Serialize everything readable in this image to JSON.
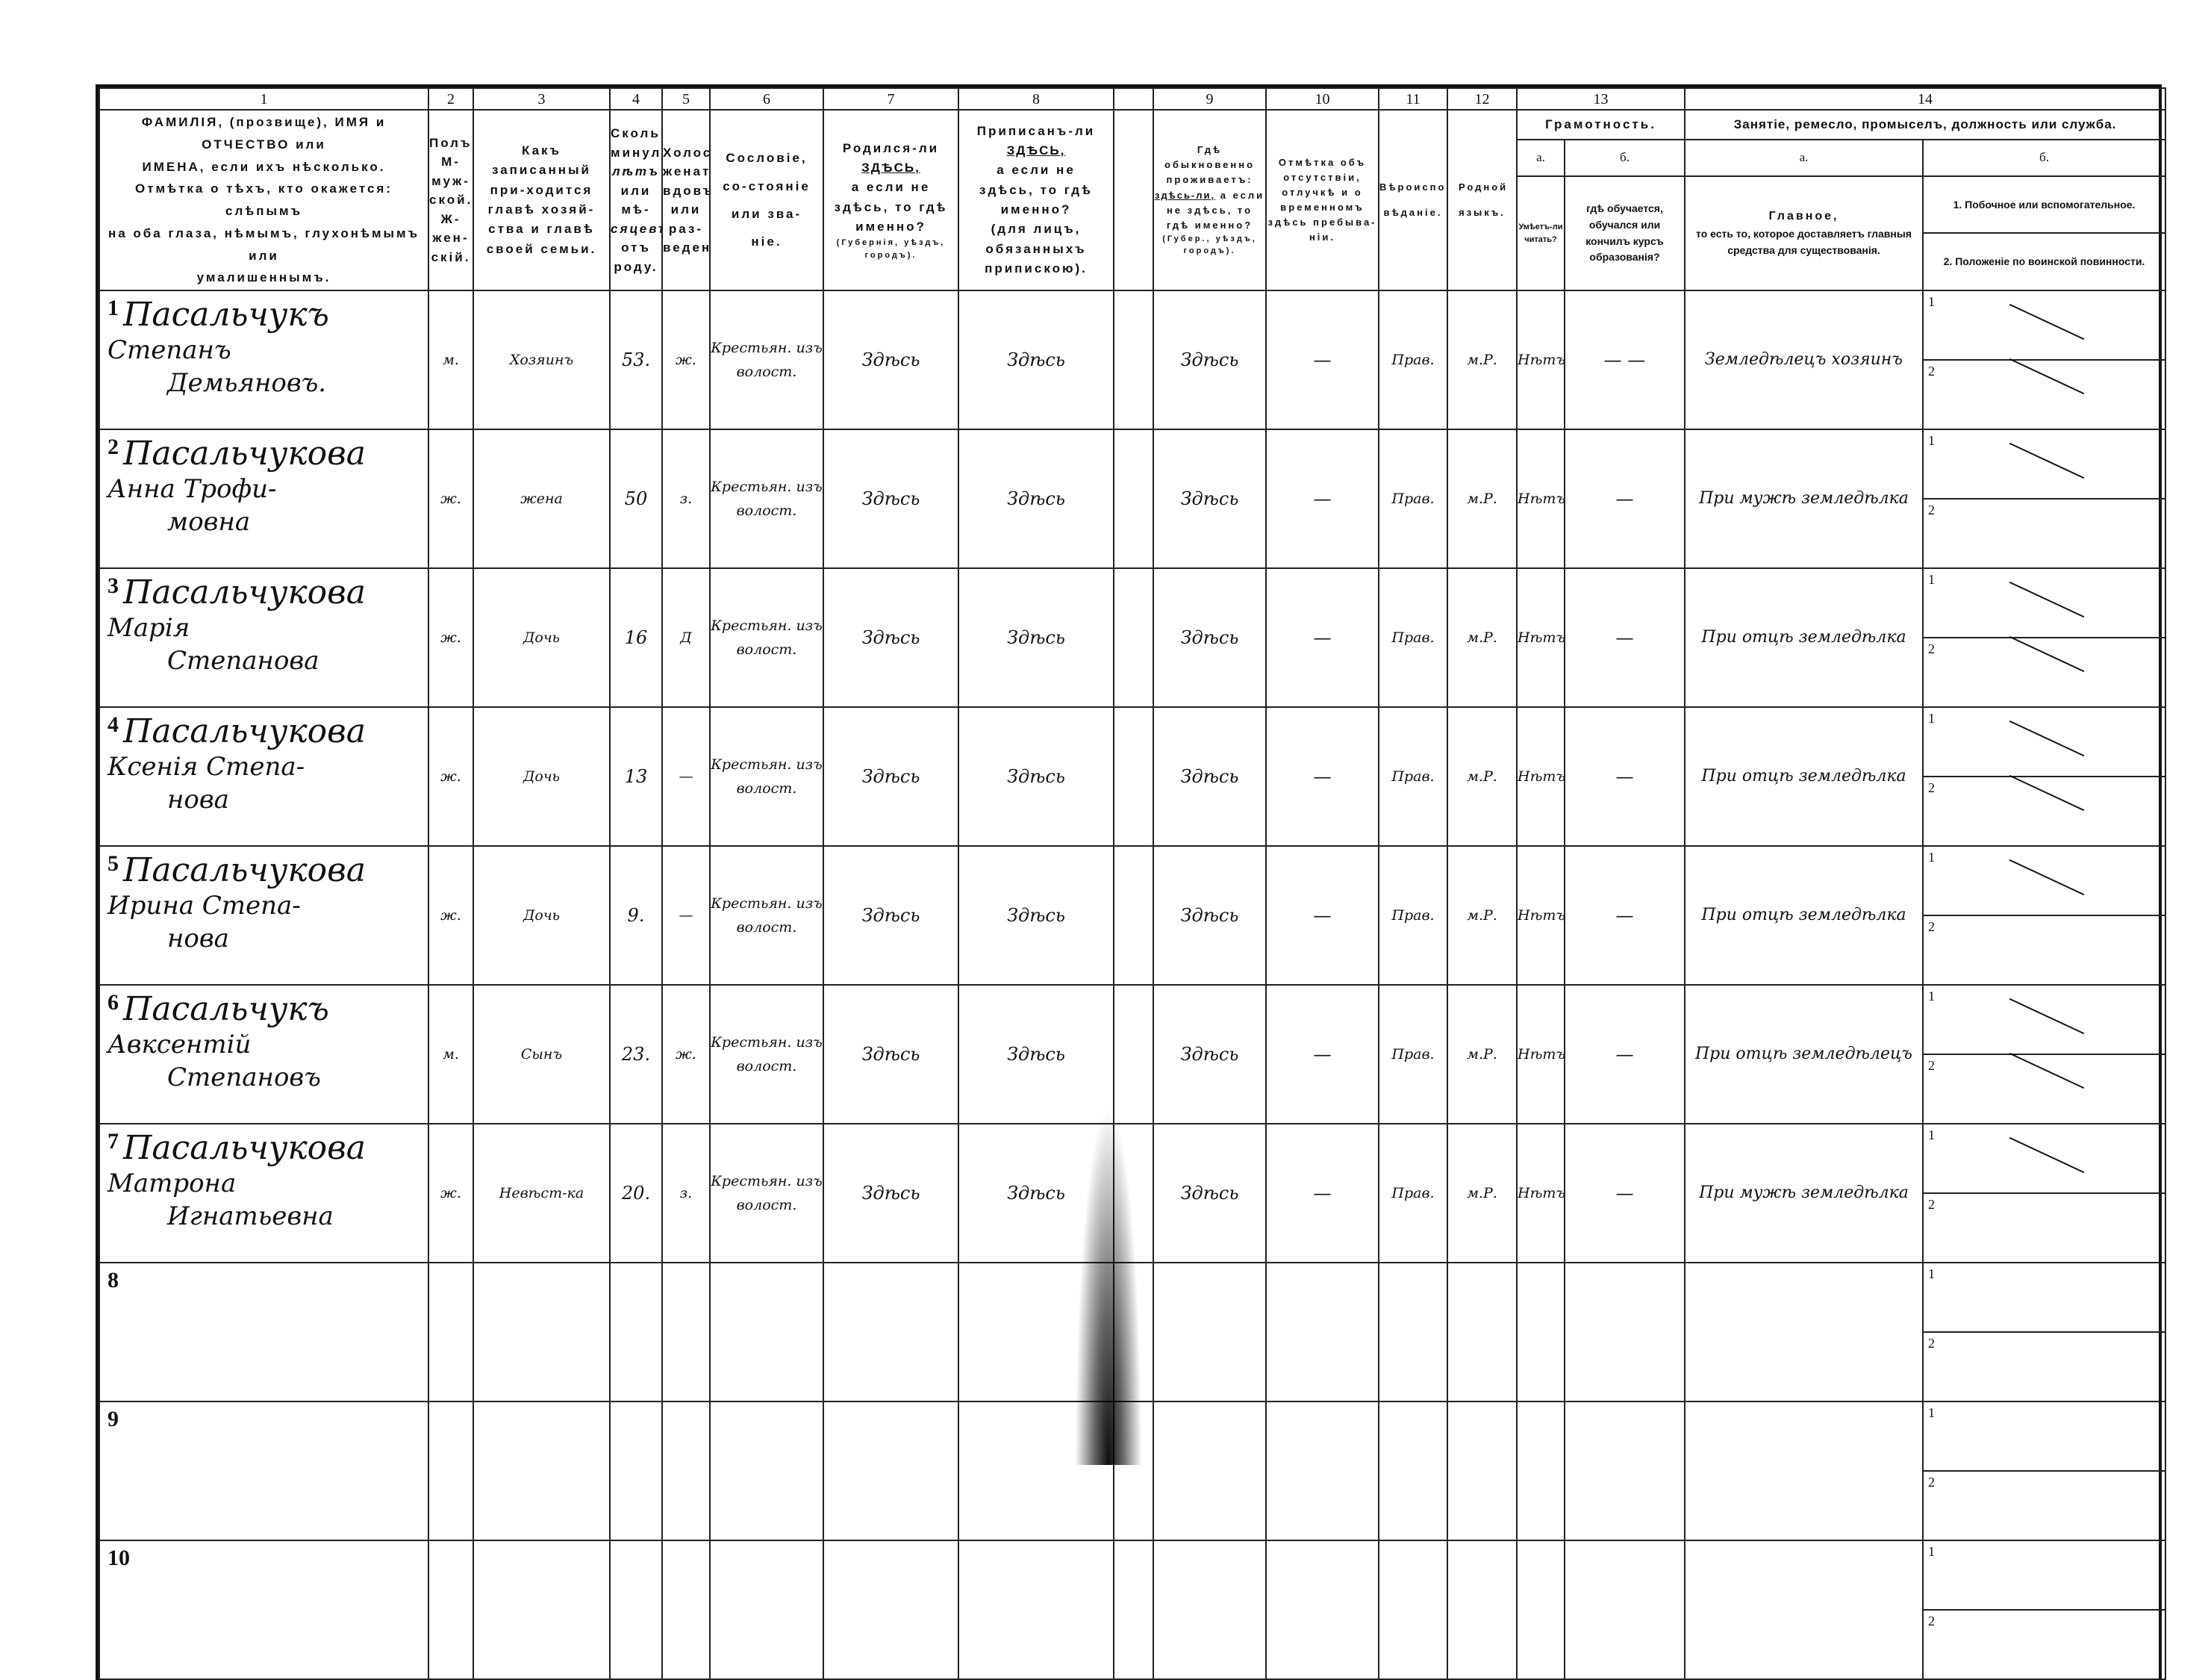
{
  "form": {
    "column_numbers": [
      "1",
      "2",
      "3",
      "4",
      "5",
      "6",
      "7",
      "8",
      "",
      "9",
      "10",
      "11",
      "12",
      "13",
      "14"
    ],
    "headers": {
      "c1": [
        "ФАМИЛІЯ, (прозвище), ИМЯ и ОТЧЕСТВО или",
        "ИМЕНА, если ихъ нѣсколько.",
        "Отмѣтка о тѣхъ, кто окажется: слѣпымъ",
        "на оба глаза, нѣмымъ, глухонѣмымъ или",
        "умалишеннымъ."
      ],
      "c2": [
        "Полъ.",
        "М-муж-ской.",
        "Ж-жен-скій."
      ],
      "c3": "Какъ записанный при-ходится главѣ хозяй-ства и главѣ своей семьи.",
      "c4": [
        "Сколько минуло",
        "лѣтъ",
        "или мѣ-",
        "сяцевъ",
        "отъ роду."
      ],
      "c5": "Холостъ, женатъ, вдовъ или раз-веденъ.",
      "c6": "Сословіе, со-стояніе или зва-ніе.",
      "c7": {
        "a": "Родился-ли",
        "b": "ЗДѢСЬ,",
        "c": "а если не здѣсь, то гдѣ именно?",
        "d": "(Губернія, уѣздъ, городъ)."
      },
      "c8": {
        "a": "Приписанъ-ли",
        "b": "ЗДѢСЬ,",
        "c": "а если не здѣсь, то гдѣ именно?",
        "d": "(для лицъ, обязанныхъ припискою)."
      },
      "c9": {
        "a": "Гдѣ обыкновенно проживаетъ:",
        "b": "здѣсь-ли,",
        "c": "а если не здѣсь, то гдѣ именно?",
        "d": "(Губер., уѣздъ, городъ)."
      },
      "c10": "Отмѣтка объ отсутствіи, отлучкѣ и о временномъ здѣсь пребыва-ніи.",
      "c11": "Вѣроиспо-вѣданіе.",
      "c12": "Родной языкъ.",
      "c13_title": "Грамотность.",
      "c13a": "а.",
      "c13b": "б.",
      "c13a_text": "Умѣетъ-ли читать?",
      "c13b_text": "гдѣ обучается, обучался или кончилъ курсъ образованія?",
      "c14_title": "Занятіе, ремесло, промыселъ, должность или служба.",
      "c14a": "а.",
      "c14b": "б.",
      "c14a_text": {
        "a": "Главное,",
        "b": "то есть то, которое доставляетъ главныя средства для существованія."
      },
      "c14b_text": {
        "a": "1. Побочное или вспомогательное.",
        "b": "2. Положеніе по воинской повинности."
      }
    },
    "sub_labels": [
      "1",
      "2"
    ],
    "rows": [
      {
        "num": "1",
        "surname": "Пасальчукъ",
        "given": [
          "Степанъ",
          "Демьяновъ."
        ],
        "sex": "м.",
        "relation": "Хозяинъ",
        "age": "53.",
        "marital": "ж.",
        "estate": "Крестьян. изъ волост.",
        "born": "Здѣсь",
        "registered": "Здѣсь",
        "resides": "Здѣсь",
        "absence": "—",
        "religion": "Прав.",
        "language": "м.Р.",
        "literate": "Нѣтъ",
        "education": "— —",
        "occupation": "Земледѣлецъ хозяинъ",
        "secondary_mark": "—",
        "military_mark": "—"
      },
      {
        "num": "2",
        "surname": "Пасальчукова",
        "given": [
          "Анна Трофи-",
          "мовна"
        ],
        "sex": "ж.",
        "relation": "жена",
        "age": "50",
        "marital": "з.",
        "estate": "Крестьян. изъ волост.",
        "born": "Здѣсь",
        "registered": "Здѣсь",
        "resides": "Здѣсь",
        "absence": "—",
        "religion": "Прав.",
        "language": "м.Р.",
        "literate": "Нѣтъ",
        "education": "—",
        "occupation": "При мужѣ земледѣлка",
        "secondary_mark": "—",
        "military_mark": ""
      },
      {
        "num": "3",
        "surname": "Пасальчукова",
        "given": [
          "Марія",
          "Степанова"
        ],
        "sex": "ж.",
        "relation": "Дочь",
        "age": "16",
        "marital": "Д",
        "estate": "Крестьян. изъ волост.",
        "born": "Здѣсь",
        "registered": "Здѣсь",
        "resides": "Здѣсь",
        "absence": "—",
        "religion": "Прав.",
        "language": "м.Р.",
        "literate": "Нѣтъ",
        "education": "—",
        "occupation": "При отцѣ земледѣлка",
        "secondary_mark": "—",
        "military_mark": "—"
      },
      {
        "num": "4",
        "surname": "Пасальчукова",
        "given": [
          "Ксенія Степа-",
          "нова"
        ],
        "sex": "ж.",
        "relation": "Дочь",
        "age": "13",
        "marital": "—",
        "estate": "Крестьян. изъ волост.",
        "born": "Здѣсь",
        "registered": "Здѣсь",
        "resides": "Здѣсь",
        "absence": "—",
        "religion": "Прав.",
        "language": "м.Р.",
        "literate": "Нѣтъ",
        "education": "—",
        "occupation": "При отцѣ земледѣлка",
        "secondary_mark": "—",
        "military_mark": "—"
      },
      {
        "num": "5",
        "surname": "Пасальчукова",
        "given": [
          "Ирина Степа-",
          "нова"
        ],
        "sex": "ж.",
        "relation": "Дочь",
        "age": "9.",
        "marital": "—",
        "estate": "Крестьян. изъ волост.",
        "born": "Здѣсь",
        "registered": "Здѣсь",
        "resides": "Здѣсь",
        "absence": "—",
        "religion": "Прав.",
        "language": "м.Р.",
        "literate": "Нѣтъ",
        "education": "—",
        "occupation": "При отцѣ земледѣлка",
        "secondary_mark": "—",
        "military_mark": ""
      },
      {
        "num": "6",
        "surname": "Пасальчукъ",
        "given": [
          "Авксентій",
          "Степановъ"
        ],
        "sex": "м.",
        "relation": "Сынъ",
        "age": "23.",
        "marital": "ж.",
        "estate": "Крестьян. изъ волост.",
        "born": "Здѣсь",
        "registered": "Здѣсь",
        "resides": "Здѣсь",
        "absence": "—",
        "religion": "Прав.",
        "language": "м.Р.",
        "literate": "Нѣтъ",
        "education": "—",
        "occupation": "При отцѣ земледѣлецъ",
        "secondary_mark": "—",
        "military_mark": "—"
      },
      {
        "num": "7",
        "surname": "Пасальчукова",
        "given": [
          "Матрона",
          "Игнатьевна"
        ],
        "sex": "ж.",
        "relation": "Невѣст-ка",
        "age": "20.",
        "marital": "з.",
        "estate": "Крестьян. изъ волост.",
        "born": "Здѣсь",
        "registered": "Здѣсь",
        "resides": "Здѣсь",
        "absence": "—",
        "religion": "Прав.",
        "language": "м.Р.",
        "literate": "Нѣтъ",
        "education": "—",
        "occupation": "При мужѣ земледѣлка",
        "secondary_mark": "—",
        "military_mark": ""
      },
      {
        "num": "8"
      },
      {
        "num": "9"
      },
      {
        "num": "10"
      }
    ]
  }
}
